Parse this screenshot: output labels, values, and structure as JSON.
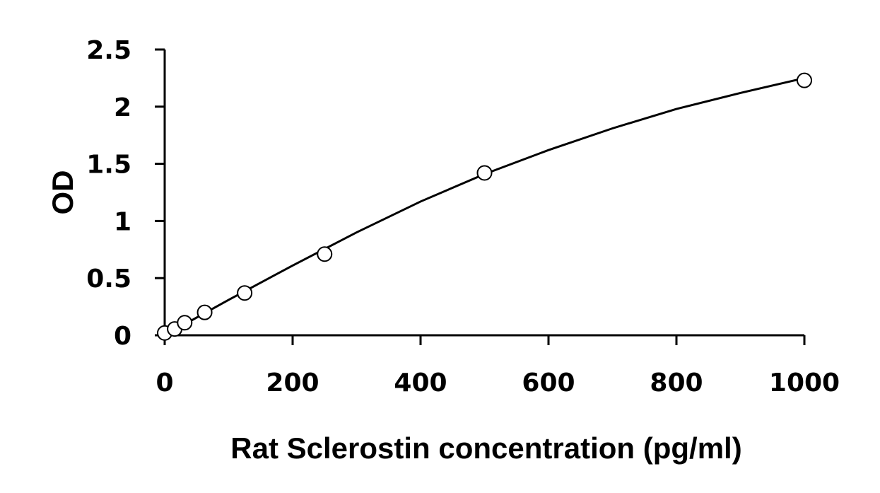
{
  "chart_data": {
    "type": "scatter",
    "title": "",
    "xlabel": "Rat Sclerostin concentration (pg/ml)",
    "ylabel": "OD",
    "xlim": [
      0,
      1000
    ],
    "ylim": [
      0,
      2.5
    ],
    "x_ticks": [
      "0",
      "200",
      "400",
      "600",
      "800",
      "1000"
    ],
    "y_ticks": [
      "0",
      "0.5",
      "1",
      "1.5",
      "2",
      "2.5"
    ],
    "grid": false,
    "legend": "none",
    "series": [
      {
        "marker": "open-circle",
        "x": [
          0,
          15.6,
          31.25,
          62.5,
          125,
          250,
          500,
          1000
        ],
        "y": [
          0.02,
          0.055,
          0.11,
          0.2,
          0.37,
          0.71,
          1.42,
          2.23
        ]
      }
    ],
    "trendline": {
      "type": "polynomial-fit",
      "x": [
        0,
        100,
        200,
        300,
        400,
        500,
        600,
        700,
        800,
        900,
        1000
      ],
      "y": [
        0.0,
        0.31,
        0.61,
        0.9,
        1.17,
        1.41,
        1.62,
        1.81,
        1.98,
        2.12,
        2.25
      ]
    }
  }
}
